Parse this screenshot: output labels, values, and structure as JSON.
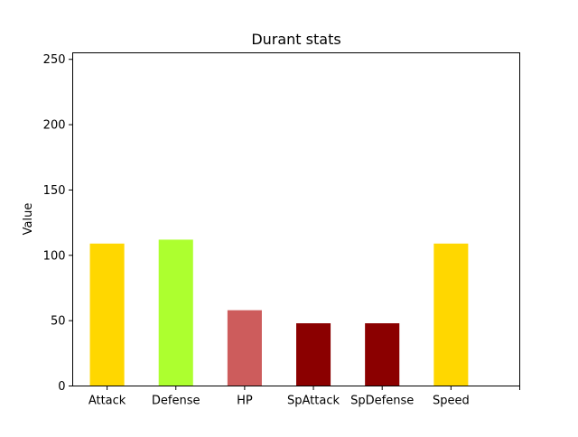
{
  "chart_data": {
    "type": "bar",
    "title": "Durant stats",
    "xlabel": "",
    "ylabel": "Value",
    "categories": [
      "Attack",
      "Defense",
      "HP",
      "SpAttack",
      "SpDefense",
      "Speed"
    ],
    "values": [
      109,
      112,
      58,
      48,
      48,
      109
    ],
    "colors": [
      "#ffd700",
      "#adff2f",
      "#cd5c5c",
      "#8b0000",
      "#8b0000",
      "#ffd700"
    ],
    "ylim": [
      0,
      255
    ],
    "yticks": [
      0,
      50,
      100,
      150,
      200,
      250
    ],
    "grid": false
  }
}
